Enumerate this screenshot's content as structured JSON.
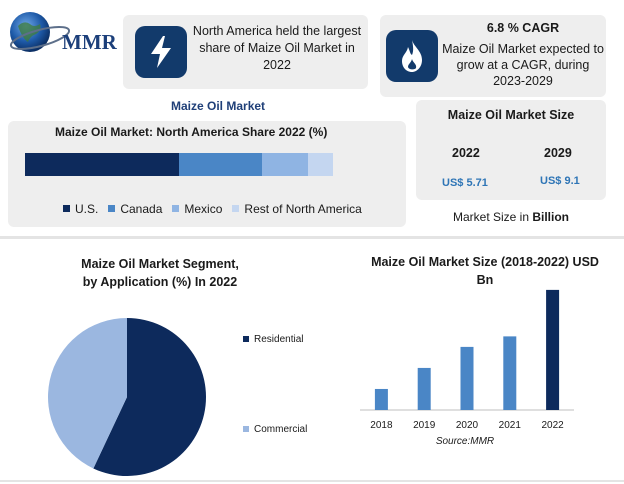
{
  "brand": {
    "logo_text": "MMR"
  },
  "header_left": {
    "text": "North America held the largest share of Maize Oil Market in 2022"
  },
  "header_right": {
    "title": "6.8 % CAGR",
    "text": "Maize Oil Market expected to grow at a CAGR, during 2023-2029"
  },
  "market_title": "Maize Oil Market",
  "colors": {
    "navy": "#0d2a5c",
    "mid_blue": "#4a86c6",
    "light_blue": "#8fb4e3",
    "pale_blue": "#c4d6f0",
    "panel_gray": "#eeeeee",
    "icon_bg": "#123a6b",
    "accent_value": "#2e75b6"
  },
  "market_size": {
    "title": "Maize Oil Market Size",
    "years": [
      "2022",
      "2029"
    ],
    "values": [
      "US$ 5.71",
      "US$ 9.1"
    ],
    "note_prefix": "Market Size in ",
    "note_unit": "Billion"
  },
  "chart_data": [
    {
      "type": "bar",
      "orientation": "horizontal-stacked",
      "title": "Maize Oil Market: North America Share 2022 (%)",
      "series": [
        {
          "name": "U.S.",
          "values": [
            50
          ],
          "color": "#0d2a5c"
        },
        {
          "name": "Canada",
          "values": [
            27
          ],
          "color": "#4a86c6"
        },
        {
          "name": "Mexico",
          "values": [
            15
          ],
          "color": "#8fb4e3"
        },
        {
          "name": "Rest of North America",
          "values": [
            8
          ],
          "color": "#c4d6f0"
        }
      ],
      "legend": "bottom"
    },
    {
      "type": "pie",
      "title_line1": "Maize Oil Market Segment,",
      "title_line2": "by Application (%) In 2022",
      "slices": [
        {
          "label": "Residential",
          "value": 57,
          "color": "#0d2a5c"
        },
        {
          "label": "Commercial",
          "value": 43,
          "color": "#9bb7e0"
        }
      ],
      "legend": "right"
    },
    {
      "type": "bar",
      "title_line1": "Maize Oil Market Size (2018-2022) USD",
      "title_line2": "Bn",
      "categories": [
        "2018",
        "2019",
        "2020",
        "2021",
        "2022"
      ],
      "values": [
        1.0,
        2.0,
        3.0,
        3.5,
        5.71
      ],
      "ylim": [
        0,
        5.8
      ],
      "colors": [
        "#4a86c6",
        "#4a86c6",
        "#4a86c6",
        "#4a86c6",
        "#0d2a5c"
      ],
      "source": "Source:MMR"
    }
  ]
}
